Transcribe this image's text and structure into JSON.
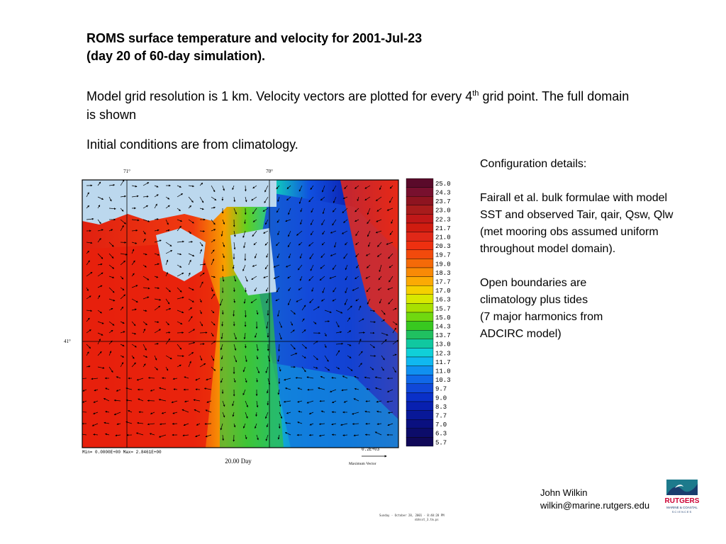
{
  "title": {
    "line1": "ROMS surface temperature and velocity for 2001-Jul-23",
    "line2": "(day 20 of 60-day simulation)."
  },
  "description": {
    "part1": "Model grid resolution is 1 km. Velocity vectors are plotted for every 4",
    "superscript": "th",
    "part2": " grid point. The full domain is shown"
  },
  "initial_conditions": "Initial conditions are from climatology.",
  "config": {
    "heading": "Configuration details:",
    "paragraph1": "Fairall et al. bulk formulae with model SST and observed Tair, qair, Qsw, Qlw (met mooring obs assumed uniform throughout model domain).",
    "paragraph2_lines": [
      "Open boundaries are",
      "climatology plus tides",
      "(7 major harmonics from",
      "ADCIRC model)"
    ]
  },
  "figure": {
    "lon_labels": [
      "71°",
      "70°"
    ],
    "lat_label": "41°",
    "min_max": "Min= 0.0000E+00  Max= 2.8461E+00",
    "vector_scale": "0.2E+03",
    "vector_label": "Maximum Vector",
    "day_label": "20.00 Day",
    "colorbar_ticks": [
      "25.0",
      "24.3",
      "23.7",
      "23.0",
      "22.3",
      "21.7",
      "21.0",
      "20.3",
      "19.7",
      "19.0",
      "18.3",
      "17.7",
      "17.0",
      "16.3",
      "15.7",
      "15.0",
      "14.3",
      "13.7",
      "13.0",
      "12.3",
      "11.7",
      "11.0",
      "10.3",
      "9.7",
      "9.0",
      "8.3",
      "7.7",
      "7.0",
      "6.3",
      "5.7"
    ],
    "colorbar_colors": [
      "#5a0a2a",
      "#78102e",
      "#8e1420",
      "#a81c1c",
      "#c01818",
      "#d01c10",
      "#e02818",
      "#ee3010",
      "#f24a0c",
      "#f56a08",
      "#f88a06",
      "#fbaa04",
      "#f5d000",
      "#d8e800",
      "#a8e000",
      "#70d810",
      "#38c820",
      "#20c060",
      "#10c8a0",
      "#10d0d8",
      "#10b8f0",
      "#1090f0",
      "#1068e8",
      "#1048d8",
      "#0a30c8",
      "#0820b0",
      "#081898",
      "#0a1080",
      "#0c0c6a",
      "#100858"
    ],
    "colors": {
      "land": "#bcd8ee",
      "frame": "#000000"
    }
  },
  "author": {
    "name": "John Wilkin",
    "email": "wilkin@marine.rutgers.edu"
  },
  "logo": {
    "name": "RUTGERS",
    "sub": "MARINE & COASTAL",
    "sub2": "SCIENCES",
    "colors": {
      "red": "#cc0033",
      "teal": "#1d7a8c",
      "navy": "#1a3c6e"
    }
  },
  "stamp": {
    "line1": "Sunday - October 28, 2001 - 8:40:28 PM",
    "line2": "nbhsst_3.tm.ps"
  }
}
